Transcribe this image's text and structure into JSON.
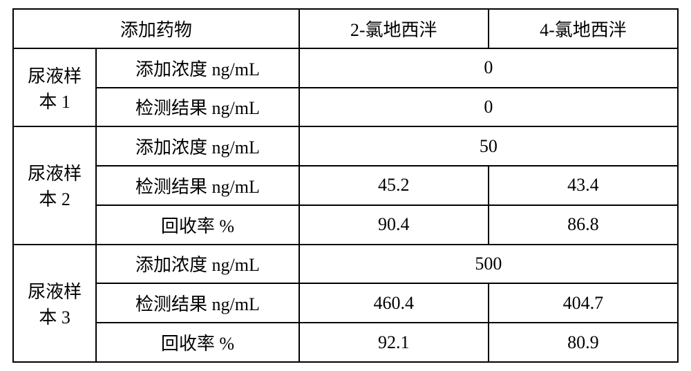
{
  "header": {
    "drug_label": "添加药物",
    "col1": "2-氯地西泮",
    "col2": "4-氯地西泮"
  },
  "rows": {
    "add_conc_label": "添加浓度 ng/mL",
    "detect_label": "检测结果 ng/mL",
    "recovery_label": "回收率  %"
  },
  "samples": {
    "s1": {
      "label_line1": "尿液样",
      "label_line2": "本 1",
      "add_conc": "0",
      "detect": "0"
    },
    "s2": {
      "label_line1": "尿液样",
      "label_line2": "本 2",
      "add_conc": "50",
      "detect_c1": "45.2",
      "detect_c2": "43.4",
      "recovery_c1": "90.4",
      "recovery_c2": "86.8"
    },
    "s3": {
      "label_line1": "尿液样",
      "label_line2": "本 3",
      "add_conc": "500",
      "detect_c1": "460.4",
      "detect_c2": "404.7",
      "recovery_c1": "92.1",
      "recovery_c2": "80.9"
    }
  }
}
